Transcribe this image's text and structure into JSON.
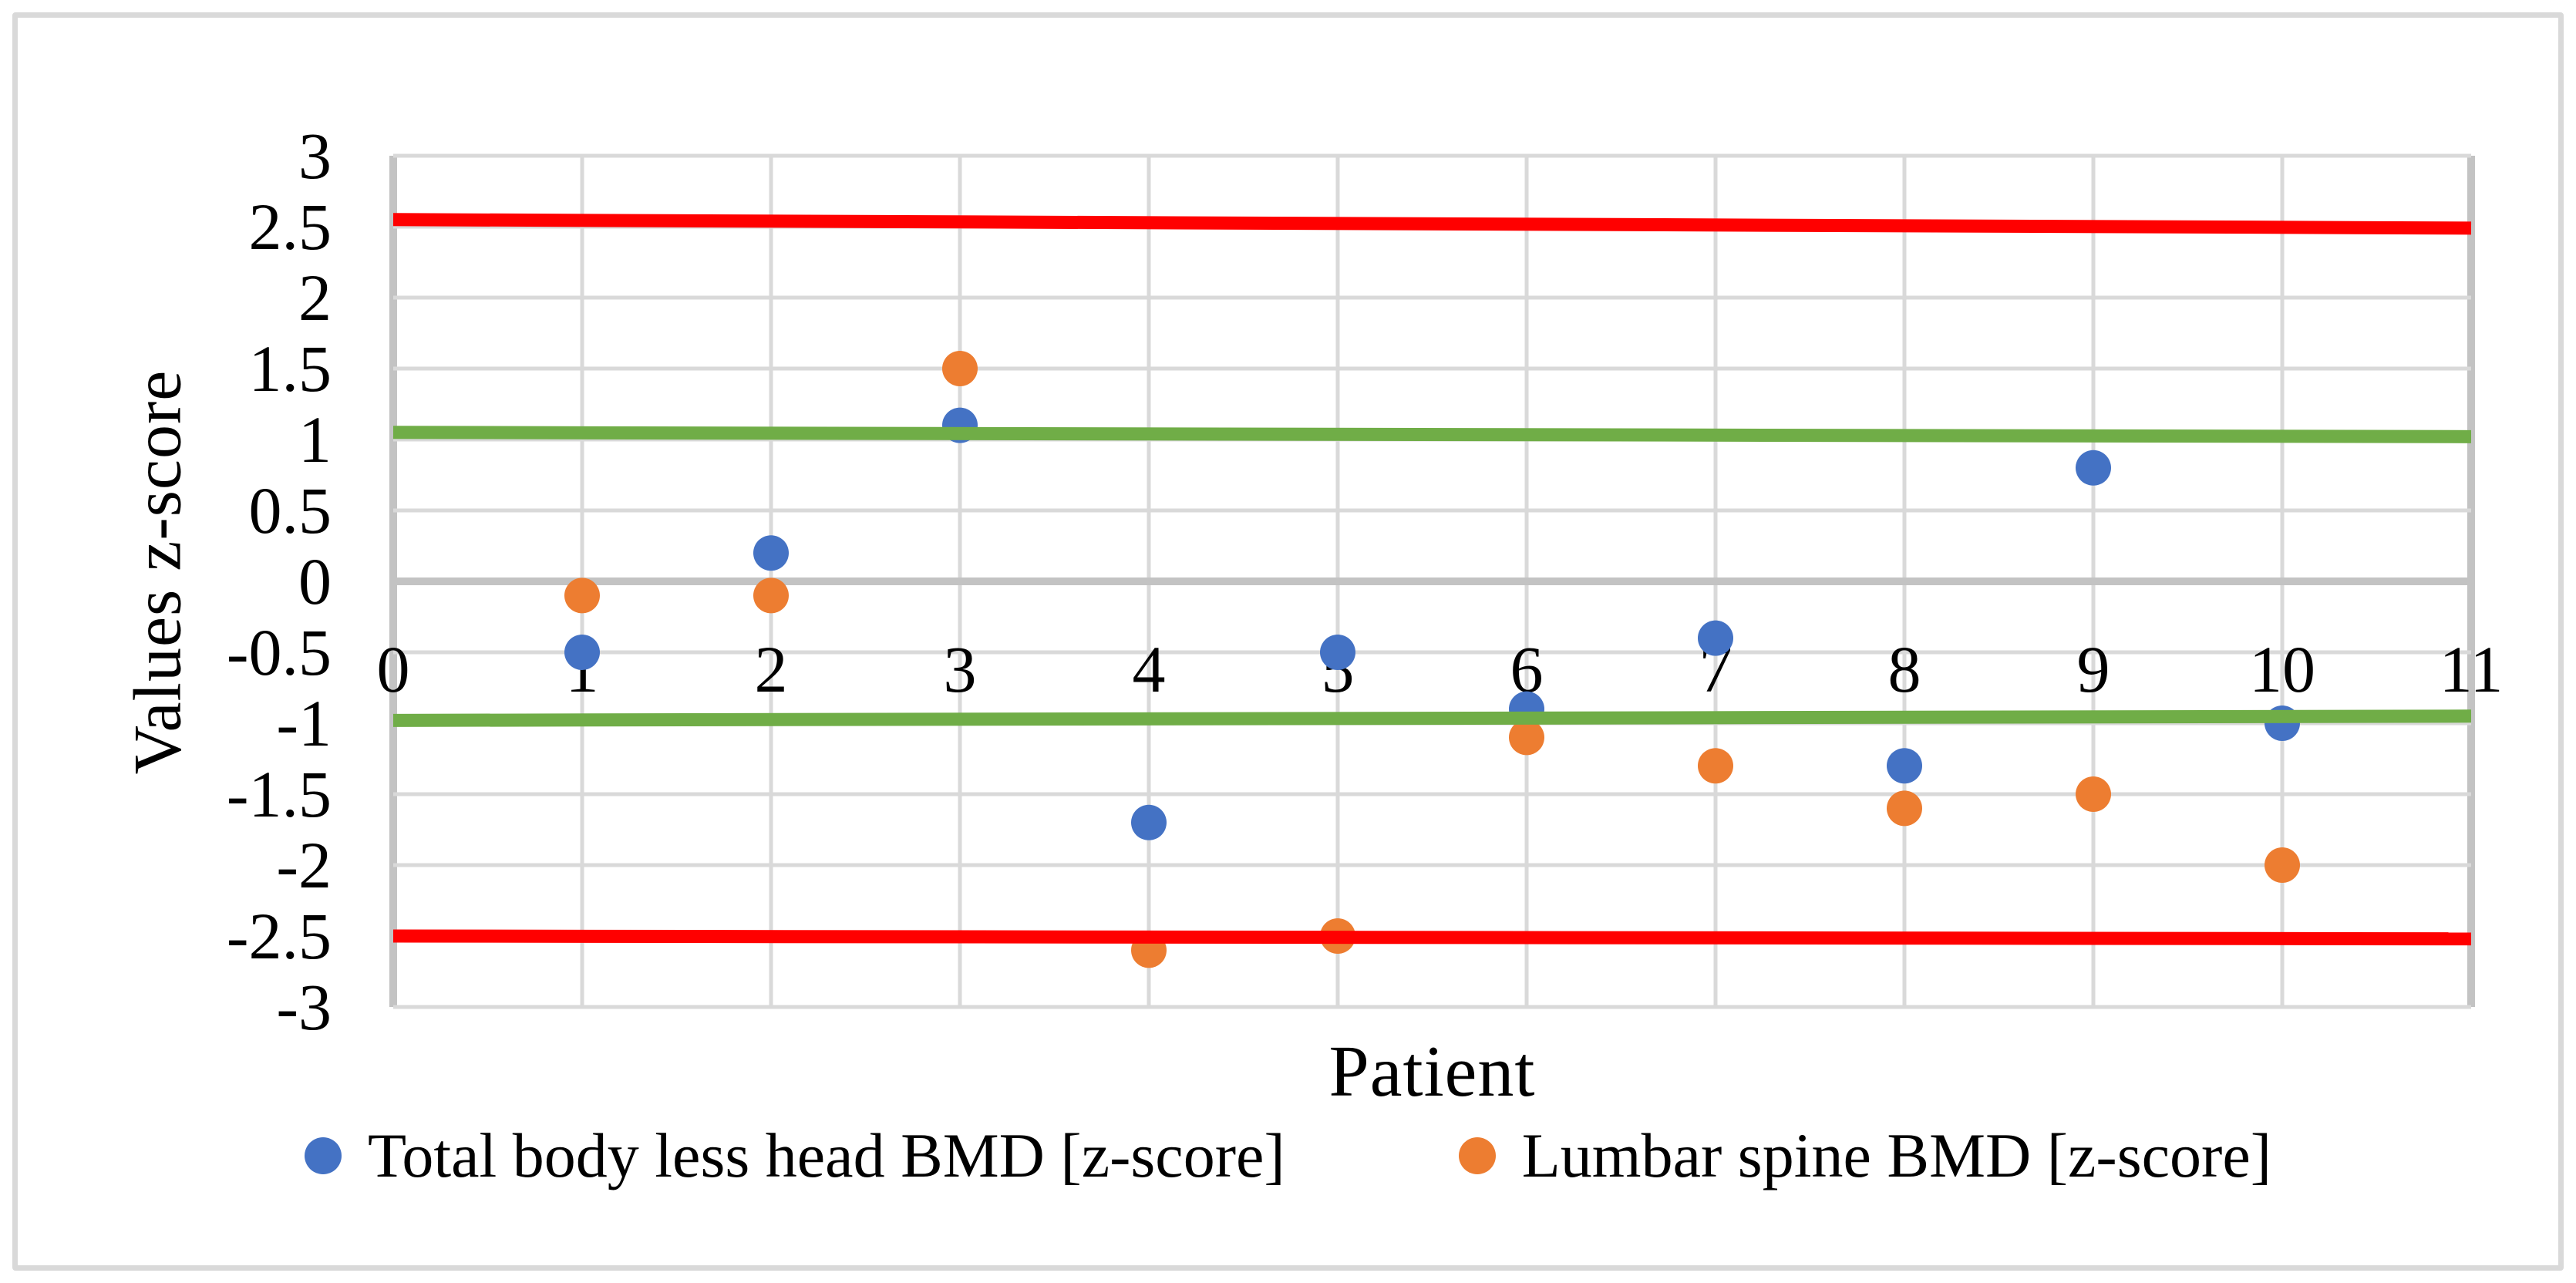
{
  "figure": {
    "background": "#ffffff",
    "border_color": "#d9d9d9"
  },
  "chart_data": {
    "type": "scatter",
    "title": "",
    "xlabel": "Patient",
    "ylabel": "Values z-score",
    "xlim": [
      0,
      11
    ],
    "ylim": [
      -3,
      3
    ],
    "x_ticks": [
      0,
      1,
      2,
      3,
      4,
      5,
      6,
      7,
      8,
      9,
      10,
      11
    ],
    "y_ticks": [
      3,
      2.5,
      2,
      1.5,
      1,
      0.5,
      0,
      -0.5,
      -1,
      -1.5,
      -2,
      -2.5,
      -3
    ],
    "grid": true,
    "legend_position": "bottom",
    "x": [
      1,
      2,
      3,
      4,
      5,
      6,
      7,
      8,
      9,
      10
    ],
    "series": [
      {
        "name": "Total body less head BMD [z-score]",
        "color": "#4472C4",
        "values": [
          -0.5,
          0.2,
          1.1,
          -1.7,
          -0.5,
          -0.9,
          -0.4,
          -1.3,
          0.8,
          -1.0
        ]
      },
      {
        "name": "Lumbar spine BMD [z-score]",
        "color": "#ED7D31",
        "values": [
          -0.1,
          -0.1,
          1.5,
          -2.6,
          -2.5,
          -1.1,
          -1.3,
          -1.6,
          -1.5,
          -2.0
        ]
      }
    ],
    "reference_lines": [
      {
        "name": "upper-red-threshold",
        "value": 2.5,
        "color": "#FF0000",
        "drawn_endpoints": [
          2.55,
          2.49
        ]
      },
      {
        "name": "upper-green-threshold",
        "value": 1.0,
        "color": "#70AD47",
        "drawn_endpoints": [
          1.05,
          1.02
        ]
      },
      {
        "name": "lower-green-threshold",
        "value": -1.0,
        "color": "#70AD47",
        "drawn_endpoints": [
          -0.98,
          -0.95
        ]
      },
      {
        "name": "lower-red-threshold",
        "value": -2.5,
        "color": "#FF0000",
        "drawn_endpoints": [
          -2.5,
          -2.52
        ]
      }
    ],
    "style": {
      "gridline_color": "#d9d9d9",
      "axis_line_color": "#c3c3c3",
      "tick_label_color": "#000000",
      "reference_line_width": 17,
      "marker_radius": 23
    }
  }
}
